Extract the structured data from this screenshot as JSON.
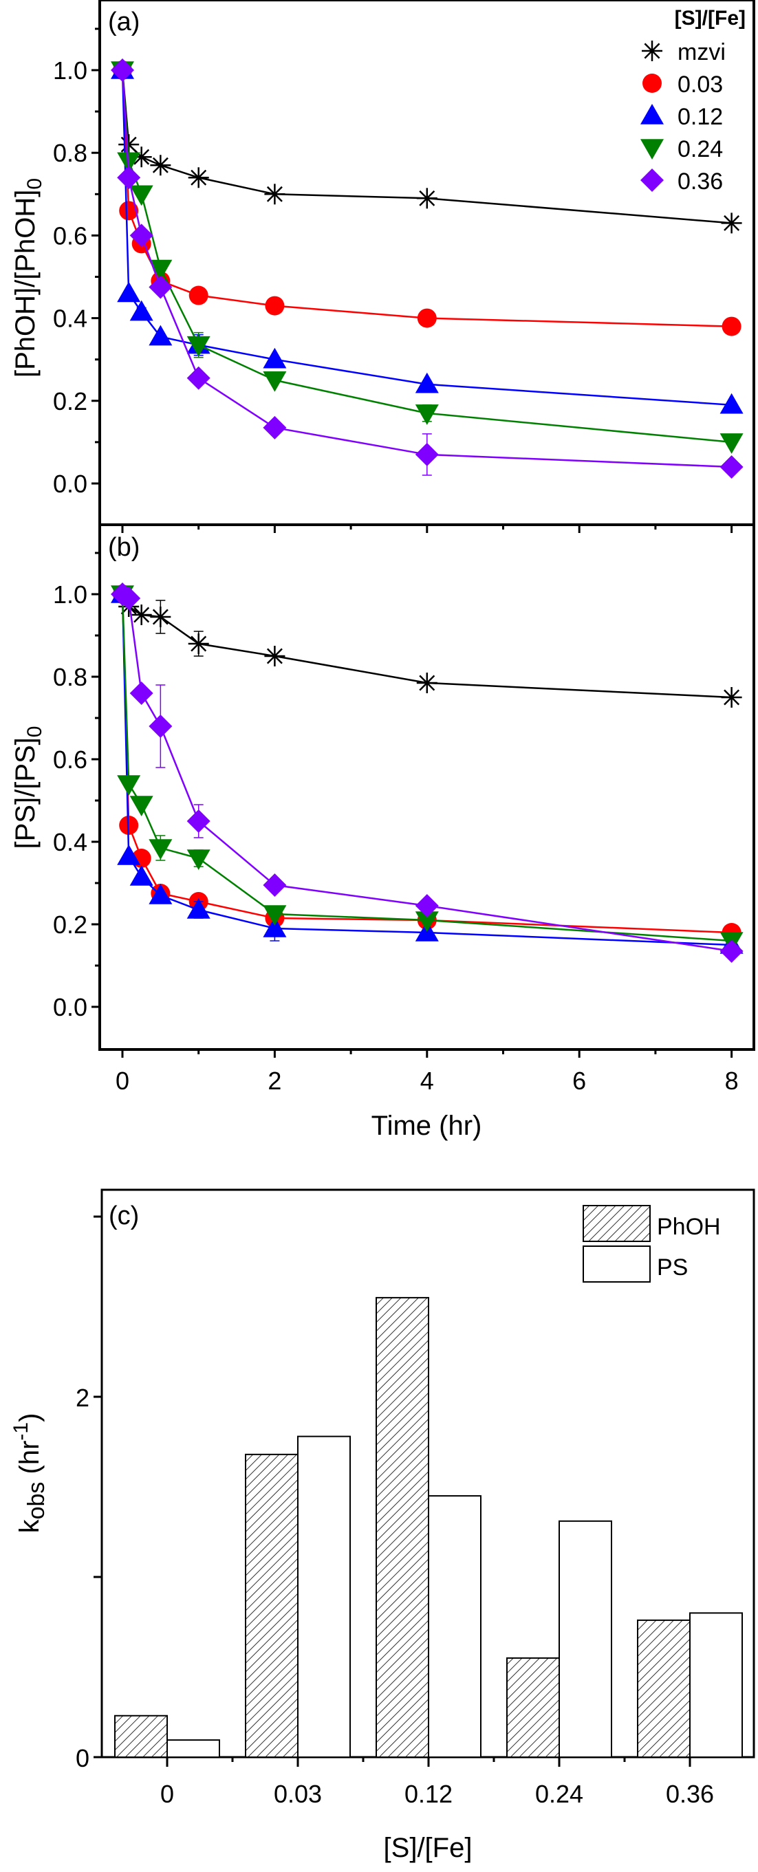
{
  "chart_data": [
    {
      "id": "a",
      "type": "line",
      "panel_label": "(a)",
      "title": "",
      "xlabel": "",
      "ylabel": "[PhOH]/[PhOH]0",
      "ylabel_main": "[PhOH]/[PhOH]",
      "ylabel_sub": "0",
      "xlim": [
        -0.3,
        8.45
      ],
      "ylim": [
        -0.1,
        1.17
      ],
      "yticks": [
        0.0,
        0.2,
        0.4,
        0.6,
        0.8,
        1.0
      ],
      "ytick_labels": [
        "0.0",
        "0.2",
        "0.4",
        "0.6",
        "0.8",
        "1.0"
      ],
      "xticks": [
        0,
        2,
        4,
        6,
        8
      ],
      "show_xtick_labels": false,
      "grid": false,
      "legend": {
        "title": "[S]/[Fe]",
        "position": "top-right",
        "entries": [
          "mzvi",
          "0.03",
          "0.12",
          "0.24",
          "0.36"
        ]
      },
      "x": [
        0,
        0.083,
        0.25,
        0.5,
        1,
        2,
        4,
        8
      ],
      "series": [
        {
          "name": "mzvi",
          "color": "#000000",
          "marker": "asterisk",
          "values": [
            1.0,
            0.82,
            0.79,
            0.77,
            0.74,
            0.7,
            0.69,
            0.63
          ]
        },
        {
          "name": "0.03",
          "color": "#ff0000",
          "marker": "circle",
          "values": [
            1.0,
            0.66,
            0.58,
            0.49,
            0.455,
            0.43,
            0.4,
            0.38
          ]
        },
        {
          "name": "0.12",
          "color": "#0000ff",
          "marker": "triangle-up",
          "values": [
            1.0,
            0.46,
            0.415,
            0.355,
            0.335,
            0.3,
            0.24,
            0.19
          ],
          "errors": [
            0,
            0,
            0.01,
            0,
            0.025,
            0,
            0,
            0
          ]
        },
        {
          "name": "0.24",
          "color": "#008000",
          "marker": "triangle-down",
          "values": [
            1.0,
            0.78,
            0.7,
            0.52,
            0.335,
            0.25,
            0.17,
            0.1
          ],
          "errors": [
            0,
            0,
            0,
            0,
            0.03,
            0,
            0.02,
            0
          ]
        },
        {
          "name": "0.36",
          "color": "#8000ff",
          "marker": "diamond",
          "values": [
            1.0,
            0.74,
            0.6,
            0.475,
            0.255,
            0.135,
            0.07,
            0.04
          ],
          "errors": [
            0,
            0,
            0,
            0,
            0,
            0,
            0.05,
            0
          ]
        }
      ]
    },
    {
      "id": "b",
      "type": "line",
      "panel_label": "(b)",
      "title": "",
      "xlabel": "Time (hr)",
      "ylabel": "[PS]/[PS]0",
      "ylabel_main": "[PS]/[PS]",
      "ylabel_sub": "0",
      "xlim": [
        -0.3,
        8.45
      ],
      "ylim": [
        -0.1,
        1.17
      ],
      "yticks": [
        0.0,
        0.2,
        0.4,
        0.6,
        0.8,
        1.0
      ],
      "ytick_labels": [
        "0.0",
        "0.2",
        "0.4",
        "0.6",
        "0.8",
        "1.0"
      ],
      "xticks": [
        0,
        2,
        4,
        6,
        8
      ],
      "xtick_labels": [
        "0",
        "2",
        "4",
        "6",
        "8"
      ],
      "show_xtick_labels": true,
      "grid": false,
      "x": [
        0,
        0.083,
        0.25,
        0.5,
        1,
        2,
        4,
        8
      ],
      "series": [
        {
          "name": "mzvi",
          "color": "#000000",
          "marker": "asterisk",
          "values": [
            1.0,
            0.97,
            0.95,
            0.945,
            0.88,
            0.85,
            0.785,
            0.75
          ],
          "errors": [
            0,
            0,
            0,
            0.04,
            0.03,
            0,
            0,
            0
          ]
        },
        {
          "name": "0.03",
          "color": "#ff0000",
          "marker": "circle",
          "values": [
            1.0,
            0.44,
            0.36,
            0.275,
            0.255,
            0.215,
            0.21,
            0.18
          ]
        },
        {
          "name": "0.12",
          "color": "#0000ff",
          "marker": "triangle-up",
          "values": [
            1.0,
            0.365,
            0.315,
            0.27,
            0.235,
            0.19,
            0.18,
            0.15
          ],
          "errors": [
            0,
            0,
            0,
            0,
            0.02,
            0.03,
            0,
            0
          ]
        },
        {
          "name": "0.24",
          "color": "#008000",
          "marker": "triangle-down",
          "values": [
            1.0,
            0.54,
            0.49,
            0.385,
            0.36,
            0.225,
            0.21,
            0.16
          ],
          "errors": [
            0,
            0,
            0,
            0.03,
            0.02,
            0,
            0,
            0
          ]
        },
        {
          "name": "0.36",
          "color": "#8000ff",
          "marker": "diamond",
          "values": [
            1.0,
            0.99,
            0.76,
            0.68,
            0.45,
            0.295,
            0.245,
            0.135
          ],
          "errors": [
            0,
            0,
            0,
            0.1,
            0.04,
            0,
            0,
            0
          ]
        }
      ]
    },
    {
      "id": "c",
      "type": "bar",
      "panel_label": "(c)",
      "title": "",
      "xlabel": "[S]/[Fe]",
      "ylabel": "kobs (hr-1)",
      "ylabel_main": "k",
      "ylabel_sub": "obs",
      "ylabel_unit_pre": " (hr",
      "ylabel_unit_sup": "-1",
      "ylabel_unit_post": ")",
      "categories": [
        "0",
        "0.03",
        "0.12",
        "0.24",
        "0.36"
      ],
      "ylim": [
        0,
        3.15
      ],
      "yticks": [
        0,
        1,
        2,
        3
      ],
      "ytick_labels": [
        "0",
        "",
        "2",
        ""
      ],
      "grid": false,
      "legend": {
        "position": "top-right",
        "entries": [
          "PhOH",
          "PS"
        ]
      },
      "series": [
        {
          "name": "PhOH",
          "fill": "hatched",
          "values": [
            0.23,
            1.68,
            2.55,
            0.55,
            0.76
          ]
        },
        {
          "name": "PS",
          "fill": "white",
          "values": [
            0.095,
            1.78,
            1.45,
            1.31,
            0.8
          ]
        }
      ]
    }
  ]
}
